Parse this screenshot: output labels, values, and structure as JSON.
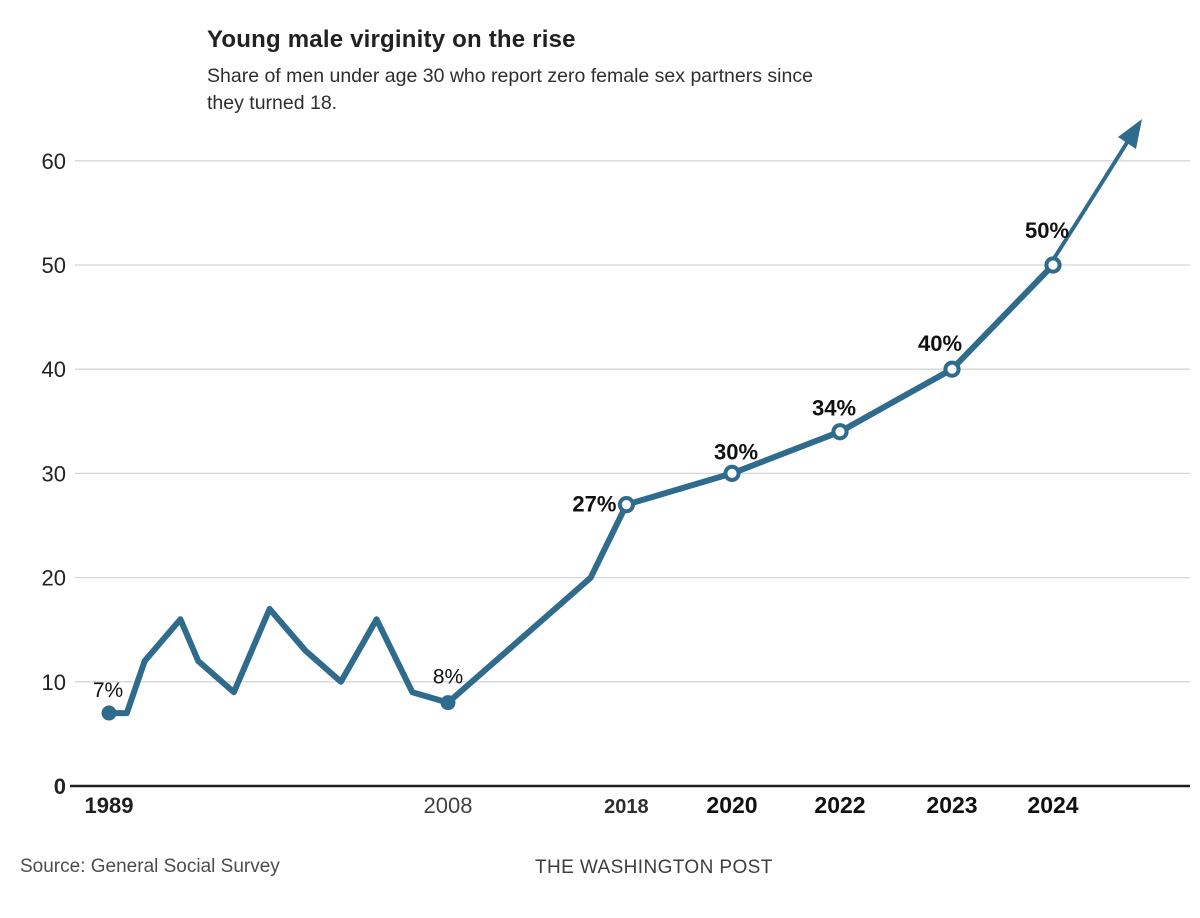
{
  "header": {
    "title": "Young male virginity on the rise",
    "subtitle_line1": "Share of men under age 30 who report zero female sex partners since",
    "subtitle_line2": "they turned 18."
  },
  "footer": {
    "source": "Source: General Social Survey",
    "credit": "THE WASHINGTON POST"
  },
  "colors": {
    "line": "#2f6b8d",
    "grid": "#d6d6d6",
    "axis": "#1f1f1f",
    "tick_text": "#222222",
    "year_bold": "#101010",
    "year_gray": "#414141",
    "label_text": "#111111"
  },
  "chart_data": {
    "type": "line",
    "title": "Young male virginity on the rise",
    "subtitle": "Share of men under age 30 who report zero female sex partners since they turned 18.",
    "xlabel": "",
    "ylabel": "",
    "ylim": [
      0,
      63
    ],
    "yticks": [
      0,
      10,
      20,
      30,
      40,
      50,
      60
    ],
    "xticks": [
      "1989",
      "2008",
      "2018",
      "2020",
      "2022",
      "2023",
      "2024"
    ],
    "grid": true,
    "legend": false,
    "series": [
      {
        "name": "Share of men under 30 reporting zero female sex partners (%)",
        "points": [
          [
            1989,
            7
          ],
          [
            1990,
            7
          ],
          [
            1991,
            12
          ],
          [
            1993,
            16
          ],
          [
            1994,
            12
          ],
          [
            1996,
            9
          ],
          [
            1998,
            17
          ],
          [
            2000,
            13
          ],
          [
            2002,
            10
          ],
          [
            2004,
            16
          ],
          [
            2006,
            9
          ],
          [
            2008,
            8
          ],
          [
            2010,
            11
          ],
          [
            2012,
            14
          ],
          [
            2014,
            17
          ],
          [
            2016,
            20
          ],
          [
            2018,
            27
          ],
          [
            2020,
            30
          ],
          [
            2022,
            34
          ],
          [
            2023,
            40
          ],
          [
            2024,
            50
          ]
        ]
      }
    ],
    "point_labels": [
      {
        "year": 1989,
        "label": "7%",
        "emphasis": false
      },
      {
        "year": 2008,
        "label": "8%",
        "emphasis": false
      },
      {
        "year": 2018,
        "label": "27%",
        "emphasis": true
      },
      {
        "year": 2020,
        "label": "30%",
        "emphasis": true
      },
      {
        "year": 2022,
        "label": "34%",
        "emphasis": true
      },
      {
        "year": 2023,
        "label": "40%",
        "emphasis": true
      },
      {
        "year": 2024,
        "label": "50%",
        "emphasis": true
      }
    ],
    "markers": {
      "filled_years": [
        1989,
        2008
      ],
      "open_years": [
        2018,
        2020,
        2022,
        2023,
        2024
      ]
    },
    "projection_arrow": true
  }
}
